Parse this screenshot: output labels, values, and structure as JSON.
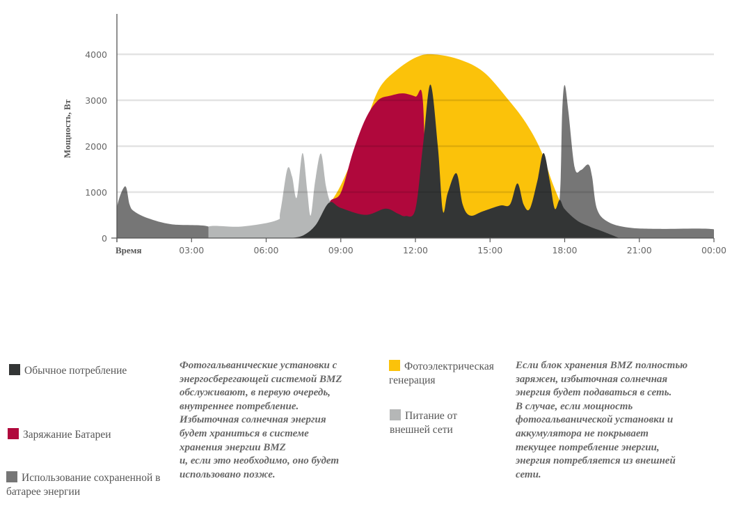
{
  "chart_data": {
    "type": "area",
    "ylabel": "Мощность, Вт",
    "xlabel": "Время",
    "ylim": [
      0,
      4000
    ],
    "xlim": [
      0,
      24
    ],
    "yticks": [
      0,
      1000,
      2000,
      3000,
      4000
    ],
    "ytick_labels": [
      "0",
      "1000",
      "2000",
      "3000",
      "4000"
    ],
    "xticks": [
      0,
      3,
      6,
      9,
      12,
      15,
      18,
      21,
      24
    ],
    "xtick_labels": [
      "Время",
      "03:00",
      "06:00",
      "09:00",
      "12:00",
      "15:00",
      "18:00",
      "21:00",
      "00:00"
    ],
    "grid": true,
    "series": [
      {
        "key": "pv",
        "name": "Фотоэлектрическая генерация",
        "color": "#FBC20A",
        "points": [
          [
            7,
            0
          ],
          [
            7.5,
            80
          ],
          [
            8,
            300
          ],
          [
            8.5,
            700
          ],
          [
            9,
            1150
          ],
          [
            9.6,
            1900
          ],
          [
            10,
            2500
          ],
          [
            10.55,
            3260
          ],
          [
            11.25,
            3660
          ],
          [
            12.05,
            3940
          ],
          [
            12.7,
            4000
          ],
          [
            13.75,
            3890
          ],
          [
            14.75,
            3610
          ],
          [
            15.75,
            3000
          ],
          [
            16.45,
            2500
          ],
          [
            17.05,
            1900
          ],
          [
            17.55,
            1140
          ],
          [
            18,
            630
          ],
          [
            18.7,
            280
          ],
          [
            19.5,
            80
          ],
          [
            20.2,
            0
          ]
        ]
      },
      {
        "key": "charge",
        "name": "Заряжание Батареи",
        "color": "#B0083C",
        "points": [
          [
            8.53,
            0
          ],
          [
            8.53,
            750
          ],
          [
            9,
            985
          ],
          [
            9.5,
            1890
          ],
          [
            10,
            2600
          ],
          [
            10.5,
            3000
          ],
          [
            11,
            3100
          ],
          [
            11.5,
            3150
          ],
          [
            12,
            3080
          ],
          [
            12.3,
            2980
          ],
          [
            12.45,
            0
          ]
        ]
      },
      {
        "key": "grid",
        "name": "Питание от внешней сети",
        "color": "#B5B7B7",
        "points": [
          [
            3.68,
            0
          ],
          [
            3.68,
            250
          ],
          [
            5,
            250
          ],
          [
            6.39,
            380
          ],
          [
            6.57,
            580
          ],
          [
            6.85,
            1500
          ],
          [
            7.04,
            1340
          ],
          [
            7.23,
            880
          ],
          [
            7.46,
            1850
          ],
          [
            7.65,
            1035
          ],
          [
            7.79,
            490
          ],
          [
            7.97,
            1240
          ],
          [
            8.2,
            1840
          ],
          [
            8.4,
            1140
          ],
          [
            8.58,
            780
          ],
          [
            8.8,
            650
          ],
          [
            9,
            0
          ]
        ]
      },
      {
        "key": "battery_left",
        "name": "Использование сохраненной в батарее энергии",
        "color": "#767676",
        "points": [
          [
            0,
            0
          ],
          [
            0,
            656
          ],
          [
            0.33,
            1126
          ],
          [
            0.51,
            730
          ],
          [
            0.7,
            580
          ],
          [
            1.26,
            430
          ],
          [
            2.2,
            300
          ],
          [
            3.68,
            250
          ],
          [
            3.68,
            0
          ]
        ]
      },
      {
        "key": "battery_right",
        "name": "Использование сохраненной в батарее энергии",
        "color": "#767676",
        "points": [
          [
            17.5,
            0
          ],
          [
            17.8,
            880
          ],
          [
            17.9,
            2750
          ],
          [
            18,
            3330
          ],
          [
            18.15,
            2750
          ],
          [
            18.4,
            1540
          ],
          [
            18.65,
            1480
          ],
          [
            18.95,
            1600
          ],
          [
            19.1,
            1340
          ],
          [
            19.3,
            630
          ],
          [
            19.75,
            350
          ],
          [
            20.55,
            230
          ],
          [
            21.75,
            200
          ],
          [
            24,
            190
          ],
          [
            24,
            0
          ]
        ]
      },
      {
        "key": "consumption",
        "name": "Обычное потребление",
        "color": "#333535",
        "points": [
          [
            7,
            0
          ],
          [
            7.5,
            60
          ],
          [
            8,
            290
          ],
          [
            8.53,
            770
          ],
          [
            9,
            656
          ],
          [
            10,
            505
          ],
          [
            10.8,
            640
          ],
          [
            11.3,
            530
          ],
          [
            11.6,
            480
          ],
          [
            12,
            630
          ],
          [
            12.3,
            2000
          ],
          [
            12.6,
            3340
          ],
          [
            12.9,
            2000
          ],
          [
            13.1,
            590
          ],
          [
            13.3,
            985
          ],
          [
            13.65,
            1410
          ],
          [
            13.9,
            730
          ],
          [
            14.2,
            490
          ],
          [
            14.7,
            580
          ],
          [
            15.4,
            707
          ],
          [
            15.8,
            730
          ],
          [
            16.1,
            1190
          ],
          [
            16.35,
            730
          ],
          [
            16.6,
            640
          ],
          [
            16.9,
            1240
          ],
          [
            17.15,
            1850
          ],
          [
            17.4,
            1240
          ],
          [
            17.6,
            640
          ],
          [
            17.8,
            830
          ],
          [
            18,
            630
          ],
          [
            18.5,
            380
          ],
          [
            19,
            250
          ],
          [
            19.5,
            150
          ],
          [
            20.2,
            0
          ]
        ]
      }
    ]
  },
  "legend": [
    {
      "label": "Обычное потребление",
      "color": "#333535"
    },
    {
      "label": "Заряжание Батареи",
      "color": "#B0083C"
    },
    {
      "label": "Использование сохраненной в батарее энергии",
      "color": "#767676"
    },
    {
      "label": "Фотоэлектрическая генерация",
      "color": "#FBC20A"
    },
    {
      "label": "Питание от внешней сети",
      "color": "#B5B7B7"
    }
  ],
  "notes": {
    "left": "Фотогальванические установки с\nэнергосберегающей системой BMZ\nобслуживают, в первую очередь,\nвнутреннее потребление.\nИзбыточная солнечная энергия\nбудет храниться в системе\nхранения энергии BMZ\nи, если это необходимо, оно будет\nиспользовано позже.",
    "right": "Если блок хранения BMZ полностью\nзаряжен, избыточная солнечная\nэнергия будет подаваться в сеть.\nВ случае, если мощность\nфотогальванической установки и\nаккумулятора не покрывает\nтекущее потребление энергии,\nэнергия потребляется из внешней\nсети."
  }
}
